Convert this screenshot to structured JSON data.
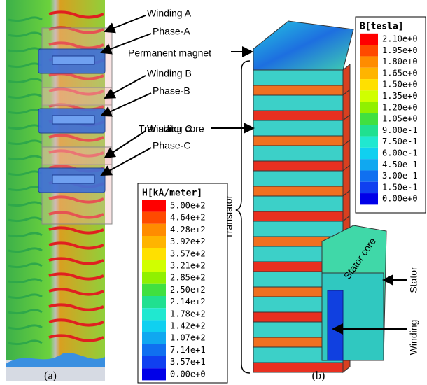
{
  "panel_a": {
    "annotations": [
      "Winding A",
      "Phase-A",
      "Winding B",
      "Phase-B",
      "Winding C",
      "Phase-C"
    ],
    "legend": {
      "title": "H[kA/meter]",
      "levels": [
        "5.00e+2",
        "4.64e+2",
        "4.28e+2",
        "3.92e+2",
        "3.57e+2",
        "3.21e+2",
        "2.85e+2",
        "2.50e+2",
        "2.14e+2",
        "1.78e+2",
        "1.42e+2",
        "1.07e+2",
        "7.14e+1",
        "3.57e+1",
        "0.00e+0"
      ]
    },
    "caption": "(a)"
  },
  "panel_b": {
    "annotations": [
      "Permanent magnet",
      "Translator core",
      "Translator",
      "Stator core",
      "Stator",
      "Winding"
    ],
    "legend": {
      "title": "B[tesla]",
      "levels": [
        "2.10e+0",
        "1.95e+0",
        "1.80e+0",
        "1.65e+0",
        "1.50e+0",
        "1.35e+0",
        "1.20e+0",
        "1.05e+0",
        "9.00e-1",
        "7.50e-1",
        "6.00e-1",
        "4.50e-1",
        "3.00e-1",
        "1.50e-1",
        "0.00e+0"
      ]
    },
    "caption": "(b)"
  }
}
